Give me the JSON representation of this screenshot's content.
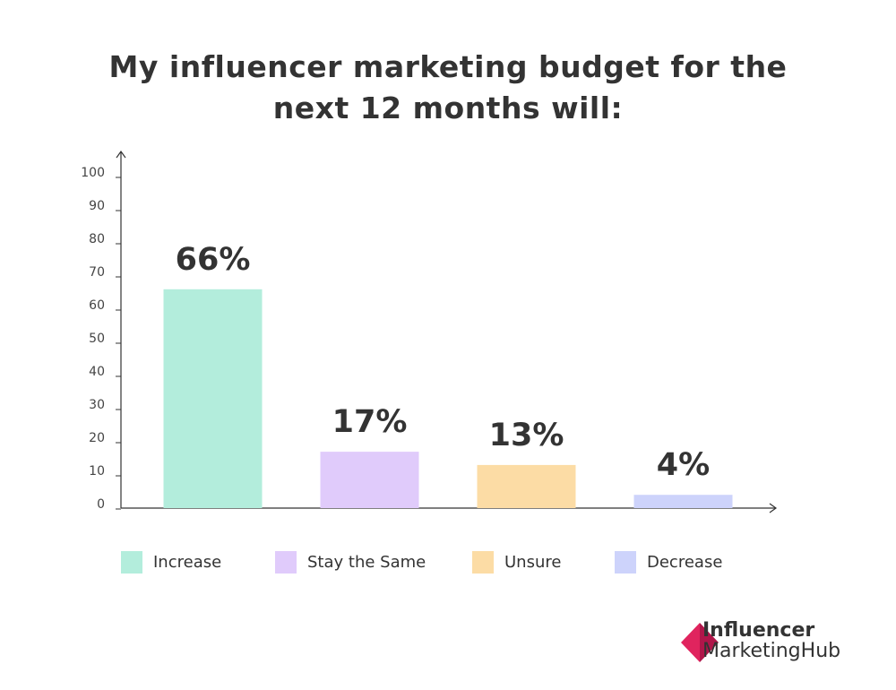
{
  "chart_data": {
    "type": "bar",
    "title": "My influencer marketing budget for the next 12 months will:",
    "categories": [
      "Increase",
      "Stay the Same",
      "Unsure",
      "Decrease"
    ],
    "values": [
      66,
      17,
      13,
      4
    ],
    "value_labels": [
      "66%",
      "17%",
      "13%",
      "4%"
    ],
    "colors": [
      "#b3eddc",
      "#e0cbfb",
      "#fcdca5",
      "#cdd3fb"
    ],
    "ylim": [
      0,
      100
    ],
    "yticks": [
      0,
      10,
      20,
      30,
      40,
      50,
      60,
      70,
      80,
      90,
      100
    ],
    "grid": false
  },
  "logo": {
    "line1": "Influencer",
    "line2": "MarketingHub"
  }
}
